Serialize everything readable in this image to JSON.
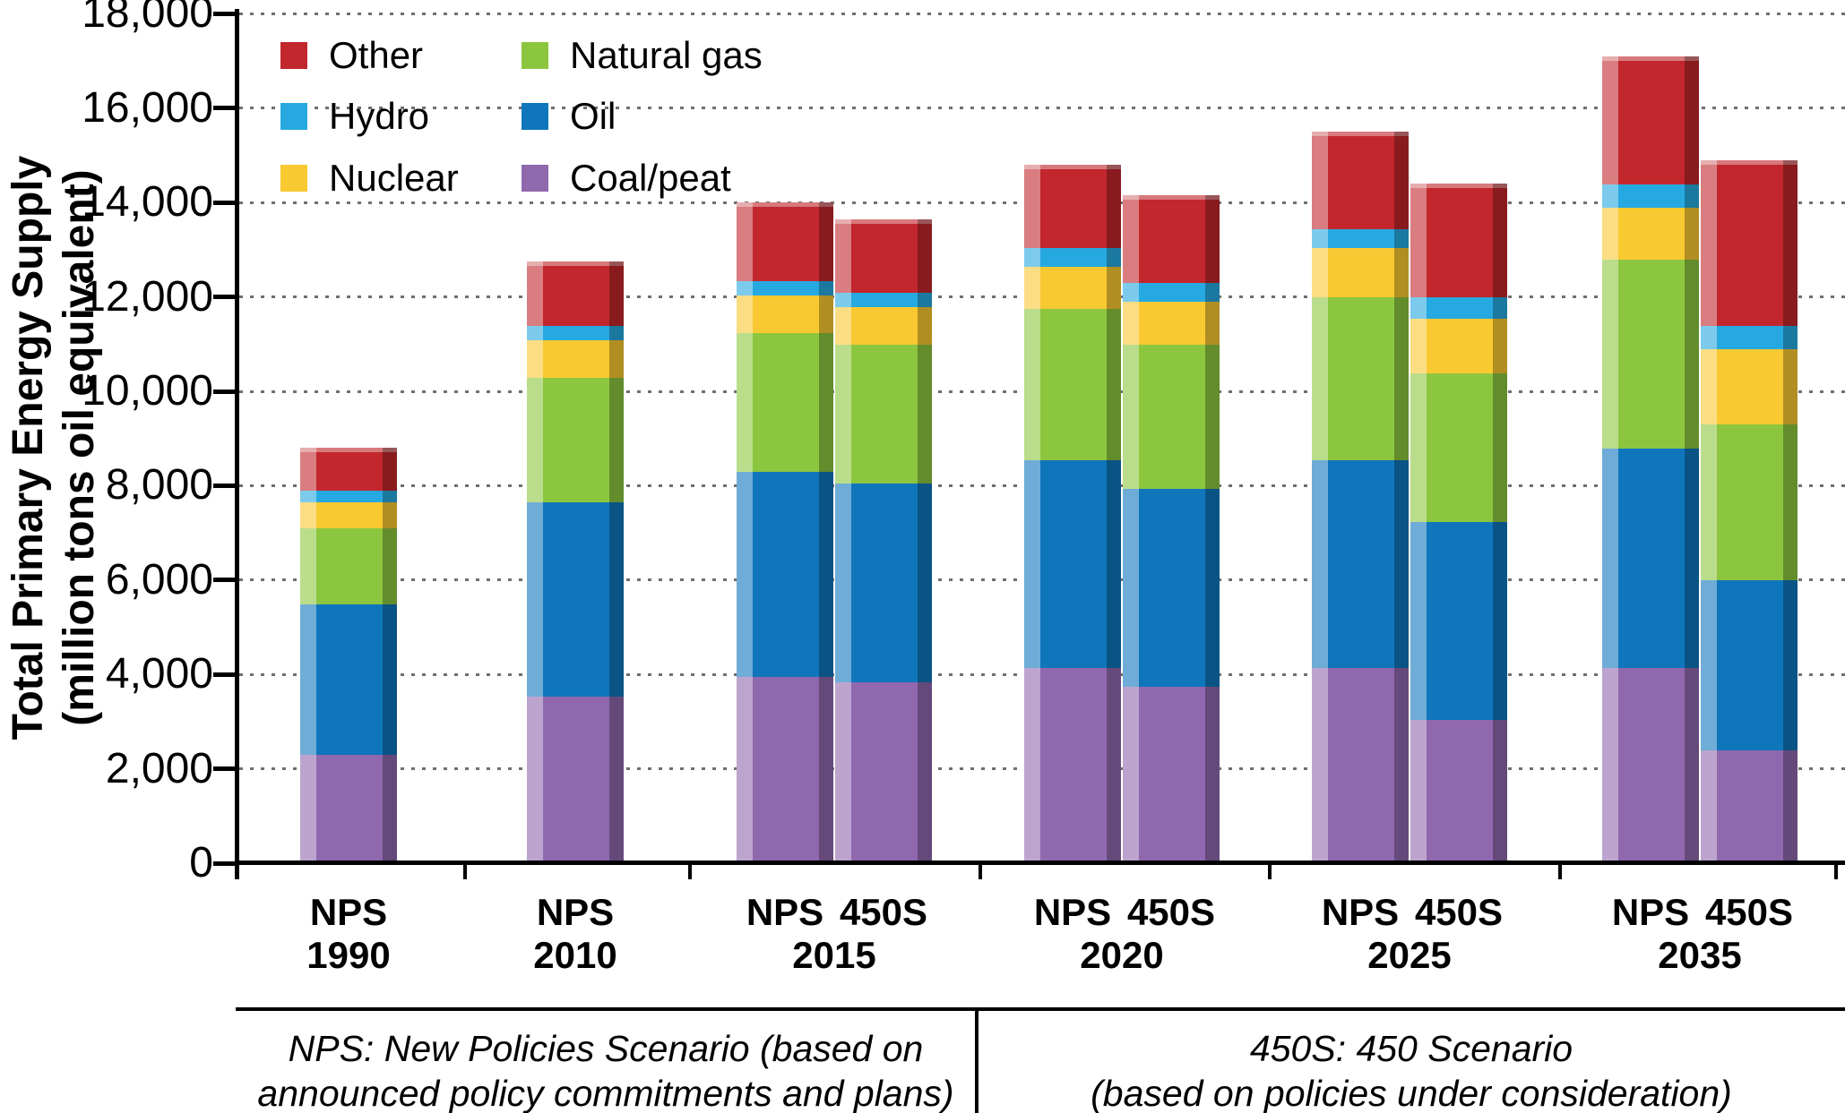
{
  "chart_data": {
    "type": "bar",
    "stacked": true,
    "ylabel_line1": "Total Primary Energy Supply",
    "ylabel_line2": "(million tons oil equivalent)",
    "ylim": [
      0,
      18000
    ],
    "grid": "dotted-horizontal",
    "y_ticks": [
      {
        "value": 0,
        "label": "0"
      },
      {
        "value": 2000,
        "label": "2,000"
      },
      {
        "value": 4000,
        "label": "4,000"
      },
      {
        "value": 6000,
        "label": "6,000"
      },
      {
        "value": 8000,
        "label": "8,000"
      },
      {
        "value": 10000,
        "label": "10,000"
      },
      {
        "value": 12000,
        "label": "12,000"
      },
      {
        "value": 14000,
        "label": "14,000"
      },
      {
        "value": 16000,
        "label": "16,000"
      },
      {
        "value": 18000,
        "label": "18,000"
      }
    ],
    "series": [
      {
        "key": "coal",
        "label": "Coal/peat",
        "color": "#8F68AE"
      },
      {
        "key": "oil",
        "label": "Oil",
        "color": "#0F76BC"
      },
      {
        "key": "gas",
        "label": "Natural gas",
        "color": "#8CC63F"
      },
      {
        "key": "nuclear",
        "label": "Nuclear",
        "color": "#F9C931"
      },
      {
        "key": "hydro",
        "label": "Hydro",
        "color": "#26A9E0"
      },
      {
        "key": "other",
        "label": "Other",
        "color": "#C1272D"
      }
    ],
    "legend": {
      "position": "top-left-inside",
      "columns": [
        [
          "other",
          "hydro",
          "nuclear"
        ],
        [
          "gas",
          "oil",
          "coal"
        ]
      ]
    },
    "groups": [
      {
        "year": "1990",
        "bars": [
          {
            "scenario": "NPS",
            "values": {
              "coal": 2300,
              "oil": 3200,
              "gas": 1600,
              "nuclear": 550,
              "hydro": 250,
              "other": 900
            }
          }
        ]
      },
      {
        "year": "2010",
        "bars": [
          {
            "scenario": "NPS",
            "values": {
              "coal": 3550,
              "oil": 4100,
              "gas": 2650,
              "nuclear": 800,
              "hydro": 300,
              "other": 1350
            }
          }
        ]
      },
      {
        "year": "2015",
        "bars": [
          {
            "scenario": "NPS",
            "values": {
              "coal": 3950,
              "oil": 4350,
              "gas": 2950,
              "nuclear": 800,
              "hydro": 300,
              "other": 1650
            }
          },
          {
            "scenario": "450S",
            "values": {
              "coal": 3850,
              "oil": 4200,
              "gas": 2950,
              "nuclear": 800,
              "hydro": 300,
              "other": 1550
            }
          }
        ]
      },
      {
        "year": "2020",
        "bars": [
          {
            "scenario": "NPS",
            "values": {
              "coal": 4150,
              "oil": 4400,
              "gas": 3200,
              "nuclear": 900,
              "hydro": 400,
              "other": 1750
            }
          },
          {
            "scenario": "450S",
            "values": {
              "coal": 3750,
              "oil": 4200,
              "gas": 3050,
              "nuclear": 900,
              "hydro": 400,
              "other": 1850
            }
          }
        ]
      },
      {
        "year": "2025",
        "bars": [
          {
            "scenario": "NPS",
            "values": {
              "coal": 4150,
              "oil": 4400,
              "gas": 3450,
              "nuclear": 1050,
              "hydro": 400,
              "other": 2050
            }
          },
          {
            "scenario": "450S",
            "values": {
              "coal": 3050,
              "oil": 4200,
              "gas": 3150,
              "nuclear": 1150,
              "hydro": 450,
              "other": 2400
            }
          }
        ]
      },
      {
        "year": "2035",
        "bars": [
          {
            "scenario": "NPS",
            "values": {
              "coal": 4150,
              "oil": 4650,
              "gas": 4000,
              "nuclear": 1100,
              "hydro": 500,
              "other": 2700
            }
          },
          {
            "scenario": "450S",
            "values": {
              "coal": 2400,
              "oil": 3600,
              "gas": 3300,
              "nuclear": 1600,
              "hydro": 500,
              "other": 3500
            }
          }
        ]
      }
    ],
    "notes": {
      "left": [
        "NPS: New Policies Scenario (based on",
        "announced policy commitments and plans)"
      ],
      "right": [
        "450S: 450 Scenario",
        "(based on policies under consideration)"
      ]
    }
  }
}
